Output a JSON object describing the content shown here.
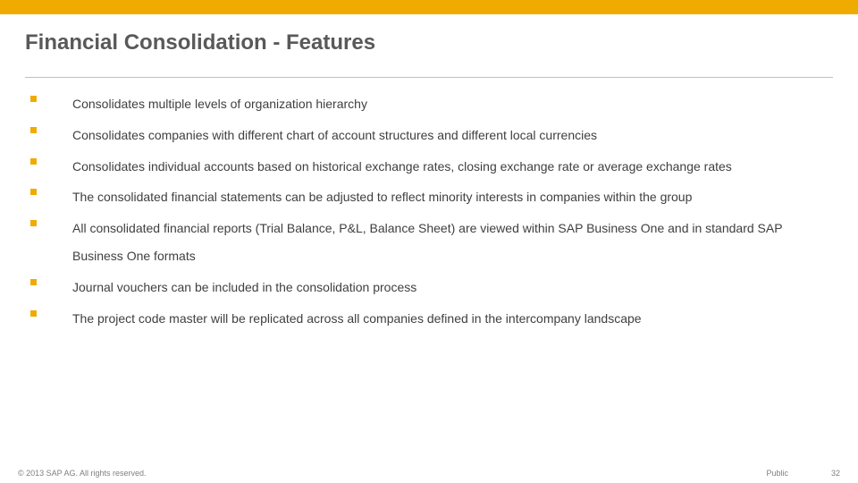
{
  "colors": {
    "accent": "#f0ab00",
    "title": "#595959",
    "rule": "#bfbfbf",
    "body": "#3f3f3f",
    "footer": "#7f7f7f"
  },
  "slide": {
    "title": "Financial Consolidation - Features",
    "bullets": [
      "Consolidates multiple levels of organization hierarchy",
      "Consolidates companies with different chart of account structures and different local currencies",
      "Consolidates individual accounts based on historical exchange rates, closing exchange rate or average exchange rates",
      "The consolidated financial statements can be adjusted to reflect minority interests in companies within the group",
      "All consolidated financial reports (Trial Balance, P&L, Balance Sheet) are viewed within SAP Business One and in standard SAP Business One formats",
      "Journal vouchers can be included in the consolidation process",
      "The project code master will be replicated across all companies defined in the intercompany landscape"
    ]
  },
  "footer": {
    "copyright": "© 2013 SAP AG. All rights reserved.",
    "classification": "Public",
    "page": "32"
  }
}
